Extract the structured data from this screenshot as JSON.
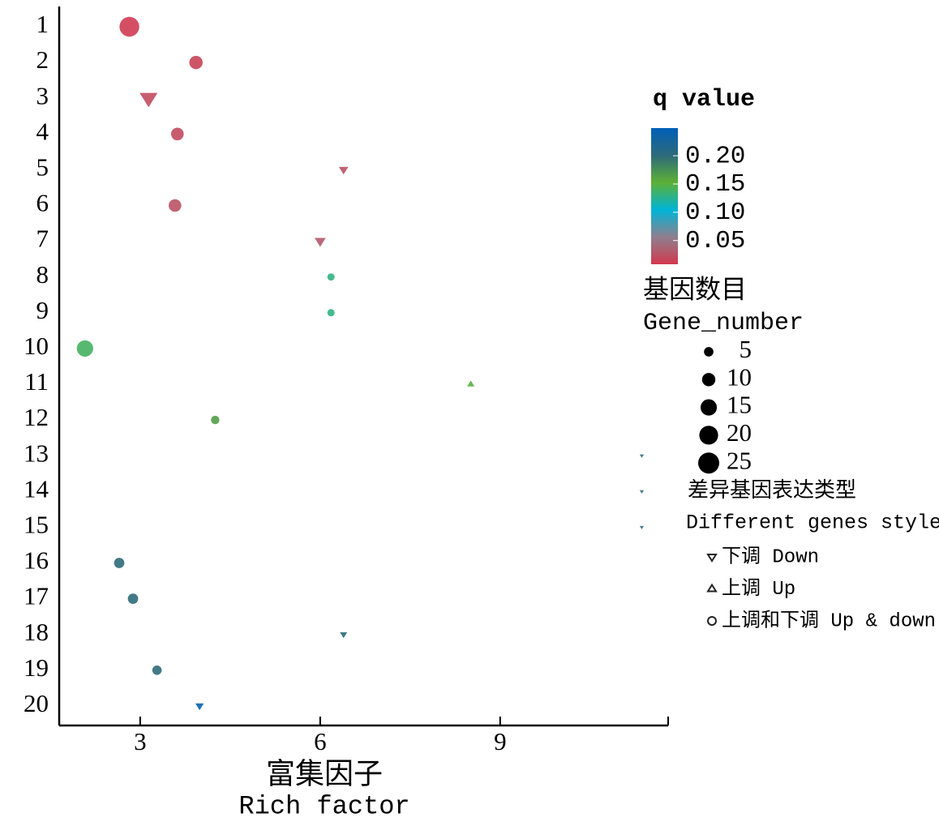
{
  "chart_data": {
    "type": "bubble",
    "categories": [
      "1",
      "2",
      "3",
      "4",
      "5",
      "6",
      "7",
      "8",
      "9",
      "10",
      "11",
      "12",
      "13",
      "14",
      "15",
      "16",
      "17",
      "18",
      "19",
      "20"
    ],
    "values": [
      2.82,
      3.93,
      3.14,
      3.62,
      6.39,
      3.58,
      6.0,
      6.18,
      6.18,
      2.08,
      8.51,
      4.25,
      11.36,
      11.36,
      11.36,
      2.65,
      2.88,
      6.39,
      3.28,
      3.99
    ],
    "gene_number": [
      22,
      10,
      18,
      9,
      5,
      9,
      7,
      3,
      3,
      15,
      3,
      4,
      1,
      1,
      1,
      6,
      6,
      3,
      5,
      4
    ],
    "q_value": [
      0.01,
      0.015,
      0.02,
      0.02,
      0.025,
      0.025,
      0.03,
      0.13,
      0.13,
      0.14,
      0.15,
      0.165,
      0.2,
      0.2,
      0.2,
      0.2,
      0.2,
      0.2,
      0.2,
      0.24
    ],
    "shape": [
      "circle",
      "circle",
      "triangle-down",
      "circle",
      "triangle-down",
      "circle",
      "triangle-down",
      "circle",
      "circle",
      "circle",
      "triangle-up",
      "circle",
      "triangle-down",
      "triangle-down",
      "triangle-down",
      "circle",
      "circle",
      "triangle-down",
      "circle",
      "triangle-down"
    ],
    "xlabel": "富集因子",
    "xlabel_en": "Rich factor",
    "xlim": [
      1.65,
      11.8
    ],
    "xticks": [
      3,
      6,
      9
    ],
    "colorbar_title": "q value",
    "clim": [
      0.008,
      0.249
    ],
    "cticks": [
      {
        "value": 0.2,
        "label": "0.20"
      },
      0.15,
      {
        "value": 0.1,
        "label": "0.10"
      },
      0.05
    ],
    "colormap": [
      "#d2394f",
      "#8f7f8e",
      "#00b4d6",
      "#5db035",
      "#2d6a7b",
      "#005fb8"
    ],
    "size_title": "基因数目",
    "size_title_en": "Gene_number",
    "size_legend": [
      5,
      10,
      15,
      20,
      25
    ],
    "style_title": "差异基因表达类型",
    "style_title_en": "Different genes style",
    "style_legend": [
      {
        "shape": "triangle-down",
        "label": "下调 Down"
      },
      {
        "shape": "triangle-up",
        "label": "上调 Up"
      },
      {
        "shape": "circle",
        "label": "上调和下调 Up & down"
      }
    ]
  }
}
